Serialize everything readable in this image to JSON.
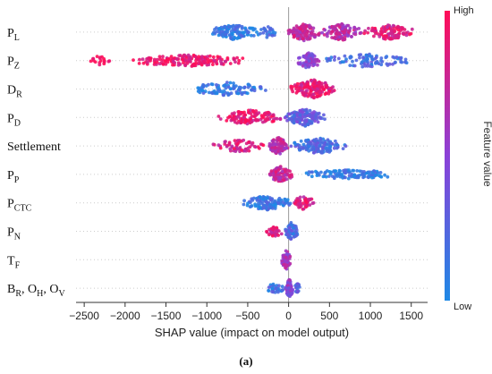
{
  "chart_data": {
    "type": "scatter",
    "subtype": "shap-beeswarm",
    "xlabel": "SHAP value (impact on model output)",
    "xlim": [
      -2600,
      1700
    ],
    "xticks": [
      -2500,
      -2000,
      -1500,
      -1000,
      -500,
      0,
      500,
      1000,
      1500
    ],
    "xtick_labels": [
      "−2500",
      "−2000",
      "−1500",
      "−1000",
      "−500",
      "0",
      "500",
      "1000",
      "1500"
    ],
    "colorbar": {
      "title": "Feature value",
      "high": "High",
      "low": "Low",
      "low_color": "#1e88e5",
      "high_color": "#ff0d57"
    },
    "caption": "(a)",
    "features": [
      {
        "label": "P",
        "sub": "L",
        "groups": [
          {
            "range": [
              -1000,
              -350
            ],
            "n": 120,
            "value": 0.1,
            "spread": 0.6
          },
          {
            "range": [
              -350,
              -150
            ],
            "n": 25,
            "value": 0.15,
            "spread": 0.4
          },
          {
            "range": [
              -20,
              400
            ],
            "n": 110,
            "value": 0.75,
            "spread": 0.8
          },
          {
            "range": [
              400,
              900
            ],
            "n": 110,
            "value": 0.7,
            "spread": 0.7
          },
          {
            "range": [
              900,
              1550
            ],
            "n": 100,
            "value": 0.85,
            "spread": 0.6
          }
        ]
      },
      {
        "label": "P",
        "sub": "Z",
        "groups": [
          {
            "range": [
              -2450,
              -2150
            ],
            "n": 18,
            "value": 0.95,
            "spread": 0.25
          },
          {
            "range": [
              -1950,
              -500
            ],
            "n": 160,
            "value": 0.92,
            "spread": 0.4
          },
          {
            "range": [
              100,
              400
            ],
            "n": 70,
            "value": 0.5,
            "spread": 0.7
          },
          {
            "range": [
              400,
              1500
            ],
            "n": 95,
            "value": 0.2,
            "spread": 0.5
          }
        ]
      },
      {
        "label": "D",
        "sub": "R",
        "groups": [
          {
            "range": [
              -1250,
              -200
            ],
            "n": 100,
            "value": 0.1,
            "spread": 0.55
          },
          {
            "range": [
              0,
              600
            ],
            "n": 150,
            "value": 0.88,
            "spread": 0.85
          }
        ]
      },
      {
        "label": "P",
        "sub": "D",
        "groups": [
          {
            "range": [
              -880,
              -50
            ],
            "n": 120,
            "value": 0.88,
            "spread": 0.6
          },
          {
            "range": [
              -50,
              450
            ],
            "n": 140,
            "value": 0.3,
            "spread": 0.75
          }
        ]
      },
      {
        "label": "Settlement",
        "sub": "",
        "groups": [
          {
            "range": [
              -950,
              -250
            ],
            "n": 60,
            "value": 0.85,
            "spread": 0.45
          },
          {
            "range": [
              -250,
              0
            ],
            "n": 90,
            "value": 0.7,
            "spread": 0.8
          },
          {
            "range": [
              0,
              750
            ],
            "n": 140,
            "value": 0.2,
            "spread": 0.65
          }
        ]
      },
      {
        "label": "P",
        "sub": "P",
        "groups": [
          {
            "range": [
              -250,
              50
            ],
            "n": 90,
            "value": 0.75,
            "spread": 0.65
          },
          {
            "range": [
              150,
              1280
            ],
            "n": 120,
            "value": 0.1,
            "spread": 0.2
          }
        ]
      },
      {
        "label": "P",
        "sub": "CTC",
        "groups": [
          {
            "range": [
              -580,
              50
            ],
            "n": 110,
            "value": 0.12,
            "spread": 0.6
          },
          {
            "range": [
              50,
              320
            ],
            "n": 50,
            "value": 0.85,
            "spread": 0.55
          }
        ]
      },
      {
        "label": "P",
        "sub": "N",
        "groups": [
          {
            "range": [
              -300,
              -50
            ],
            "n": 35,
            "value": 0.85,
            "spread": 0.3
          },
          {
            "range": [
              -50,
              120
            ],
            "n": 60,
            "value": 0.2,
            "spread": 0.8
          }
        ]
      },
      {
        "label": "T",
        "sub": "F",
        "groups": [
          {
            "range": [
              -90,
              30
            ],
            "n": 50,
            "value": 0.6,
            "spread": 0.9
          }
        ]
      },
      {
        "label": "B",
        "sub": "R",
        "tail": [
          {
            "text": ", O",
            "sub": "H"
          },
          {
            "text": ", O",
            "sub": "V"
          }
        ],
        "groups": [
          {
            "range": [
              -280,
              -40
            ],
            "n": 30,
            "value": 0.15,
            "spread": 0.25
          },
          {
            "range": [
              -40,
              60
            ],
            "n": 60,
            "value": 0.5,
            "spread": 0.85
          },
          {
            "range": [
              60,
              160
            ],
            "n": 20,
            "value": 0.25,
            "spread": 0.25
          }
        ]
      }
    ]
  }
}
